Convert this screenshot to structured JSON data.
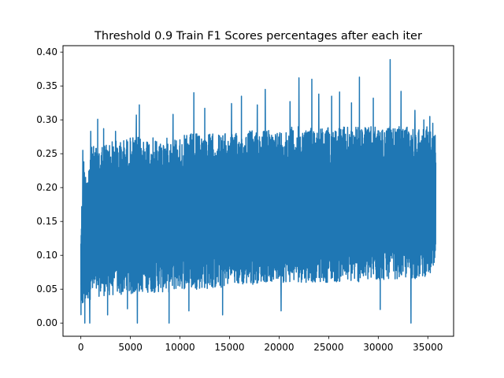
{
  "chart_data": {
    "type": "line",
    "title": "Threshold 0.9 Train F1 Scores percentages after each iter",
    "xlabel": "",
    "ylabel": "",
    "xlim": [
      -1800,
      37600
    ],
    "ylim": [
      -0.0195,
      0.4095
    ],
    "xticks": [
      0,
      5000,
      10000,
      15000,
      20000,
      25000,
      30000,
      35000
    ],
    "xtick_labels": [
      "0",
      "5000",
      "10000",
      "15000",
      "20000",
      "25000",
      "30000",
      "35000"
    ],
    "yticks": [
      0.0,
      0.05,
      0.1,
      0.15,
      0.2,
      0.25,
      0.3,
      0.35,
      0.4
    ],
    "ytick_labels": [
      "0.00",
      "0.05",
      "0.10",
      "0.15",
      "0.20",
      "0.25",
      "0.30",
      "0.35",
      "0.40"
    ],
    "grid": false,
    "series": [
      {
        "name": "",
        "color": "#1f77b4",
        "x_range": [
          0,
          35800
        ],
        "envelope": {
          "x": [
            0,
            250,
            500,
            1000,
            2000,
            3000,
            4000,
            5000,
            6000,
            7000,
            8000,
            9000,
            10000,
            11000,
            12000,
            13000,
            14000,
            15000,
            16000,
            17000,
            18000,
            19000,
            20000,
            21000,
            22000,
            23000,
            24000,
            25000,
            26000,
            27000,
            28000,
            29000,
            30000,
            31000,
            32000,
            33000,
            34000,
            35000,
            35800
          ],
          "upper": [
            0.14,
            0.25,
            0.22,
            0.26,
            0.265,
            0.27,
            0.27,
            0.275,
            0.275,
            0.275,
            0.27,
            0.275,
            0.275,
            0.28,
            0.28,
            0.28,
            0.28,
            0.28,
            0.28,
            0.285,
            0.285,
            0.285,
            0.285,
            0.29,
            0.29,
            0.29,
            0.29,
            0.29,
            0.29,
            0.29,
            0.29,
            0.29,
            0.29,
            0.29,
            0.29,
            0.29,
            0.29,
            0.29,
            0.28
          ],
          "lower": [
            0.0,
            0.02,
            0.03,
            0.035,
            0.04,
            0.04,
            0.04,
            0.04,
            0.045,
            0.045,
            0.045,
            0.045,
            0.05,
            0.05,
            0.05,
            0.05,
            0.05,
            0.055,
            0.055,
            0.055,
            0.06,
            0.06,
            0.06,
            0.06,
            0.06,
            0.06,
            0.06,
            0.06,
            0.06,
            0.06,
            0.06,
            0.06,
            0.06,
            0.065,
            0.065,
            0.065,
            0.065,
            0.07,
            0.07
          ]
        },
        "spikes": [
          {
            "x": 200,
            "y": 0.255
          },
          {
            "x": 400,
            "y": 0.0
          },
          {
            "x": 900,
            "y": 0.0
          },
          {
            "x": 1000,
            "y": 0.283
          },
          {
            "x": 1700,
            "y": 0.301
          },
          {
            "x": 2300,
            "y": 0.287
          },
          {
            "x": 2700,
            "y": 0.012
          },
          {
            "x": 3500,
            "y": 0.283
          },
          {
            "x": 4700,
            "y": 0.021
          },
          {
            "x": 5600,
            "y": 0.307
          },
          {
            "x": 5700,
            "y": 0.0
          },
          {
            "x": 5900,
            "y": 0.322
          },
          {
            "x": 8900,
            "y": 0.0
          },
          {
            "x": 9300,
            "y": 0.308
          },
          {
            "x": 10900,
            "y": 0.018
          },
          {
            "x": 11400,
            "y": 0.34
          },
          {
            "x": 12500,
            "y": 0.317
          },
          {
            "x": 14300,
            "y": 0.012
          },
          {
            "x": 15200,
            "y": 0.324
          },
          {
            "x": 16200,
            "y": 0.335
          },
          {
            "x": 17800,
            "y": 0.322
          },
          {
            "x": 18600,
            "y": 0.345
          },
          {
            "x": 20200,
            "y": 0.018
          },
          {
            "x": 21100,
            "y": 0.327
          },
          {
            "x": 22000,
            "y": 0.362
          },
          {
            "x": 23300,
            "y": 0.36
          },
          {
            "x": 24000,
            "y": 0.338
          },
          {
            "x": 25300,
            "y": 0.335
          },
          {
            "x": 26100,
            "y": 0.341
          },
          {
            "x": 27300,
            "y": 0.325
          },
          {
            "x": 28100,
            "y": 0.363
          },
          {
            "x": 29500,
            "y": 0.332
          },
          {
            "x": 30200,
            "y": 0.02
          },
          {
            "x": 31200,
            "y": 0.389
          },
          {
            "x": 32300,
            "y": 0.342
          },
          {
            "x": 33300,
            "y": 0.0
          },
          {
            "x": 33700,
            "y": 0.314
          },
          {
            "x": 34600,
            "y": 0.3
          },
          {
            "x": 35200,
            "y": 0.305
          },
          {
            "x": 35500,
            "y": 0.295
          }
        ]
      }
    ]
  }
}
